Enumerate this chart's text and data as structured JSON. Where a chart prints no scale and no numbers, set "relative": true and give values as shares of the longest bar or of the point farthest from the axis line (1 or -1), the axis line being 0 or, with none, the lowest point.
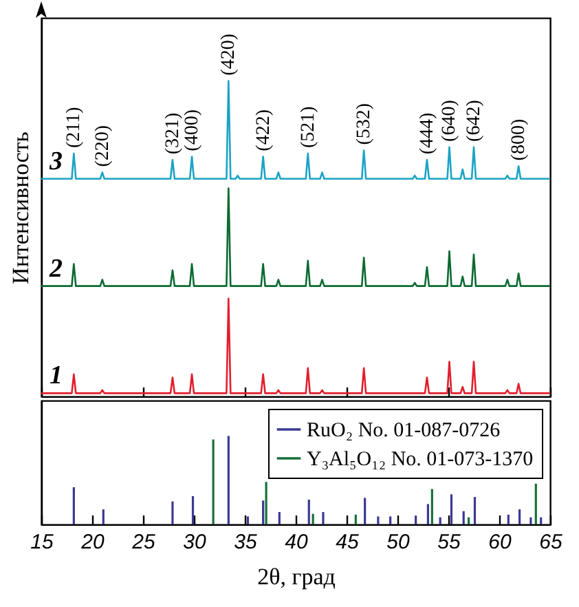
{
  "chart_data": [
    {
      "type": "line",
      "relative": true,
      "ylabel": "Интенсивность",
      "xlim": [
        15,
        65
      ],
      "xticks": [
        15,
        20,
        25,
        30,
        35,
        40,
        45,
        50,
        55,
        60,
        65
      ],
      "tick_labels": false,
      "grid": false,
      "legend": false,
      "x": [
        15,
        18.0,
        18.2,
        18.4,
        20.8,
        21.0,
        21.2,
        27.7,
        27.9,
        28.1,
        29.6,
        29.8,
        30.0,
        33.2,
        33.4,
        33.6,
        34.1,
        34.3,
        34.5,
        36.6,
        36.8,
        37.0,
        38.1,
        38.3,
        38.5,
        41.0,
        41.2,
        41.4,
        42.4,
        42.6,
        42.8,
        46.5,
        46.7,
        46.9,
        51.5,
        51.7,
        51.9,
        52.7,
        52.9,
        53.1,
        54.9,
        55.1,
        55.3,
        56.2,
        56.4,
        56.6,
        57.3,
        57.5,
        57.7,
        60.6,
        60.8,
        61.0,
        61.7,
        61.9,
        62.1,
        65
      ],
      "series": [
        {
          "name": "1",
          "color": "#e31e2d",
          "values": [
            0.01,
            0.01,
            0.07,
            0.01,
            0.01,
            0.02,
            0.01,
            0.01,
            0.06,
            0.01,
            0.01,
            0.07,
            0.01,
            0.01,
            0.31,
            0.01,
            0.01,
            0.01,
            0.01,
            0.01,
            0.07,
            0.01,
            0.01,
            0.02,
            0.01,
            0.01,
            0.09,
            0.01,
            0.01,
            0.02,
            0.01,
            0.01,
            0.09,
            0.01,
            0.01,
            0.01,
            0.01,
            0.01,
            0.06,
            0.01,
            0.01,
            0.11,
            0.01,
            0.01,
            0.03,
            0.01,
            0.01,
            0.11,
            0.01,
            0.01,
            0.02,
            0.01,
            0.01,
            0.04,
            0.01,
            0.01
          ]
        },
        {
          "name": "2",
          "color": "#0b6a30",
          "values": [
            0.35,
            0.35,
            0.42,
            0.35,
            0.35,
            0.37,
            0.35,
            0.35,
            0.4,
            0.35,
            0.35,
            0.42,
            0.35,
            0.35,
            0.66,
            0.35,
            0.35,
            0.35,
            0.35,
            0.35,
            0.42,
            0.35,
            0.35,
            0.37,
            0.35,
            0.35,
            0.43,
            0.35,
            0.35,
            0.37,
            0.35,
            0.35,
            0.44,
            0.35,
            0.35,
            0.36,
            0.35,
            0.35,
            0.41,
            0.35,
            0.35,
            0.46,
            0.35,
            0.35,
            0.38,
            0.35,
            0.35,
            0.45,
            0.35,
            0.35,
            0.37,
            0.35,
            0.35,
            0.39,
            0.35,
            0.35
          ]
        },
        {
          "name": "3",
          "color": "#1ba3c6",
          "values": [
            0.69,
            0.69,
            0.77,
            0.69,
            0.69,
            0.71,
            0.69,
            0.69,
            0.75,
            0.69,
            0.69,
            0.76,
            0.69,
            0.69,
            1.0,
            0.69,
            0.69,
            0.7,
            0.69,
            0.69,
            0.76,
            0.69,
            0.69,
            0.71,
            0.69,
            0.69,
            0.77,
            0.69,
            0.69,
            0.71,
            0.69,
            0.69,
            0.78,
            0.69,
            0.69,
            0.7,
            0.69,
            0.69,
            0.75,
            0.69,
            0.69,
            0.79,
            0.69,
            0.69,
            0.72,
            0.69,
            0.69,
            0.79,
            0.69,
            0.69,
            0.7,
            0.69,
            0.69,
            0.73,
            0.69,
            0.69
          ]
        }
      ],
      "annotations": [
        {
          "text": "(211)",
          "x": 18.2,
          "y": 0.77
        },
        {
          "text": "(220)",
          "x": 21.0,
          "y": 0.71
        },
        {
          "text": "(321)",
          "x": 27.9,
          "y": 0.75
        },
        {
          "text": "(400)",
          "x": 29.8,
          "y": 0.76
        },
        {
          "text": "(420)",
          "x": 33.4,
          "y": 1.0
        },
        {
          "text": "(422)",
          "x": 36.8,
          "y": 0.76
        },
        {
          "text": "(521)",
          "x": 41.2,
          "y": 0.77
        },
        {
          "text": "(532)",
          "x": 46.7,
          "y": 0.78
        },
        {
          "text": "(444)",
          "x": 52.9,
          "y": 0.75
        },
        {
          "text": "(640)",
          "x": 55.1,
          "y": 0.79
        },
        {
          "text": "(642)",
          "x": 57.5,
          "y": 0.79
        },
        {
          "text": "(800)",
          "x": 61.9,
          "y": 0.73
        }
      ]
    },
    {
      "type": "bar",
      "relative": true,
      "xlabel": "2θ, град",
      "xlim": [
        15,
        65
      ],
      "xticks": [
        15,
        20,
        25,
        30,
        35,
        40,
        45,
        50,
        55,
        60,
        65
      ],
      "grid": false,
      "legend": "top right",
      "series": [
        {
          "name": "RuO₂ No. 01-087-0726",
          "color": "#3b3895",
          "x": [
            18.2,
            21.1,
            27.9,
            29.9,
            33.4,
            35.3,
            36.8,
            38.4,
            41.3,
            42.7,
            46.8,
            48.1,
            49.3,
            51.8,
            53.0,
            54.2,
            55.3,
            56.5,
            57.6,
            60.9,
            62.0,
            63.1,
            64.1
          ],
          "values": [
            0.42,
            0.17,
            0.26,
            0.32,
            1.0,
            0.09,
            0.27,
            0.14,
            0.28,
            0.14,
            0.3,
            0.09,
            0.09,
            0.1,
            0.23,
            0.08,
            0.34,
            0.15,
            0.31,
            0.11,
            0.17,
            0.08,
            0.08
          ]
        },
        {
          "name": "Y₃Al₅O₁₂ No. 01-073-1370",
          "color": "#17703a",
          "x": [
            31.9,
            37.1,
            41.7,
            45.9,
            53.4,
            57.0,
            63.6
          ],
          "values": [
            0.96,
            0.48,
            0.12,
            0.11,
            0.4,
            0.08,
            0.46
          ]
        }
      ]
    }
  ]
}
